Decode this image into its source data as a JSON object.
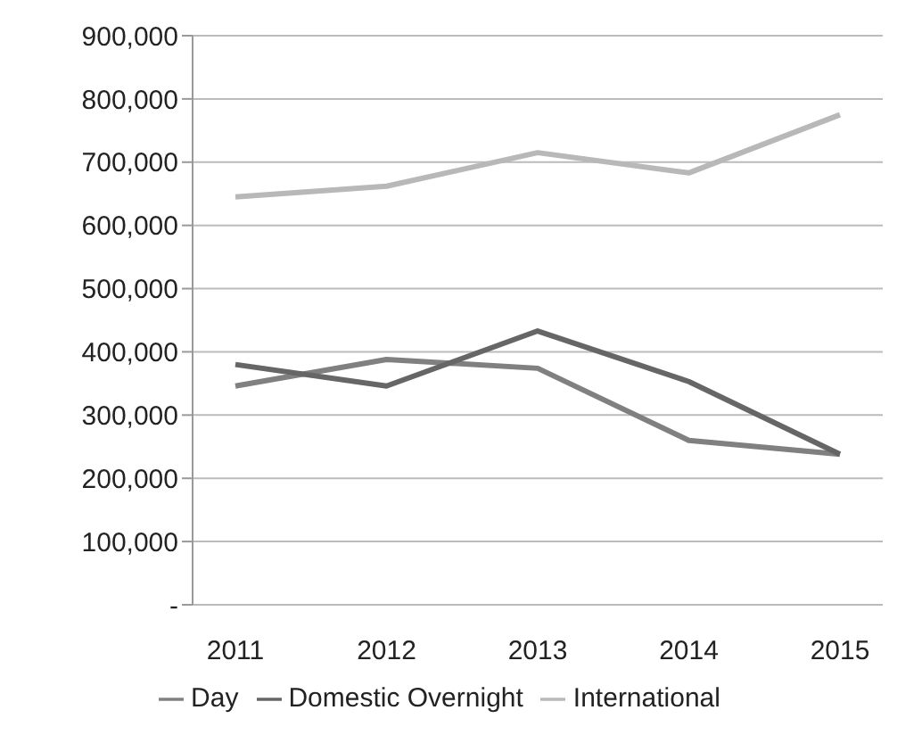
{
  "chart_data": {
    "type": "line",
    "categories": [
      "2011",
      "2012",
      "2013",
      "2014",
      "2015"
    ],
    "series": [
      {
        "name": "Day",
        "color": "#808080",
        "values": [
          346000,
          388000,
          374000,
          260000,
          238000
        ]
      },
      {
        "name": "Domestic Overnight",
        "color": "#666666",
        "values": [
          380000,
          346000,
          433000,
          353000,
          238000
        ]
      },
      {
        "name": "International",
        "color": "#b8b8b8",
        "values": [
          645000,
          662000,
          715000,
          683000,
          775000
        ]
      }
    ],
    "ylim": [
      0,
      900000
    ],
    "yticks": [
      {
        "value": 0,
        "label": "-"
      },
      {
        "value": 100000,
        "label": "100,000"
      },
      {
        "value": 200000,
        "label": "200,000"
      },
      {
        "value": 300000,
        "label": "300,000"
      },
      {
        "value": 400000,
        "label": "400,000"
      },
      {
        "value": 500000,
        "label": "500,000"
      },
      {
        "value": 600000,
        "label": "600,000"
      },
      {
        "value": 700000,
        "label": "700,000"
      },
      {
        "value": 800000,
        "label": "800,000"
      },
      {
        "value": 900000,
        "label": "900,000"
      }
    ],
    "grid": "y",
    "legend": "bottom",
    "marker": "none",
    "line_style": "solid"
  }
}
